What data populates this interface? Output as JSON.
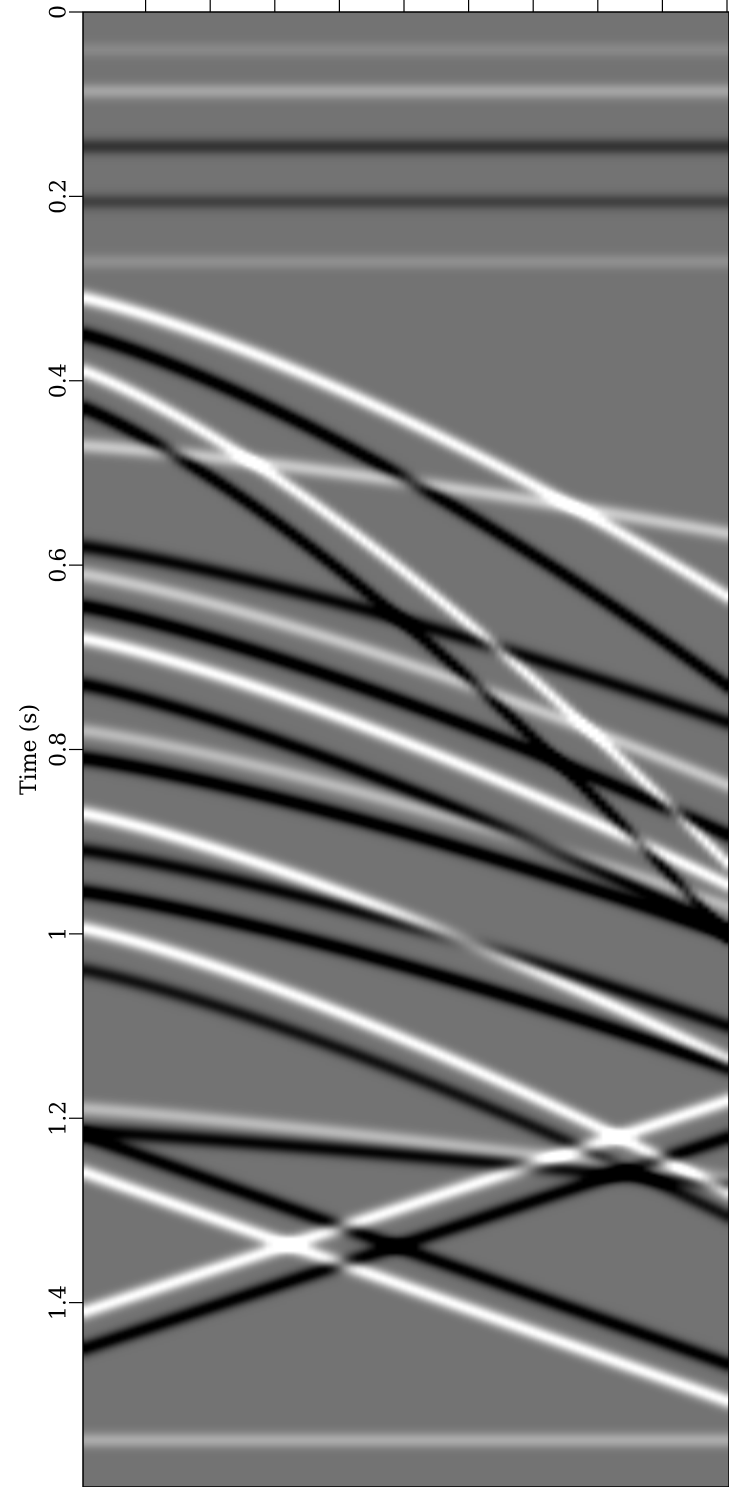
{
  "chart_data": {
    "type": "heatmap",
    "title": "",
    "ylabel": "Time (s)",
    "xlabel": "",
    "y_ticks": [
      "0",
      "0.2",
      "0.4",
      "0.6",
      "0.8",
      "1",
      "1.2",
      "1.4"
    ],
    "ylim": [
      0,
      1.6
    ],
    "y_inverted": true,
    "colormap": "grayscale",
    "x_tick_count": 10,
    "events": [
      {
        "t0": 0.04,
        "dt": 0.0,
        "bend": 0.0,
        "amp": 0.15
      },
      {
        "t0": 0.085,
        "dt": 0.0,
        "bend": 0.0,
        "amp": 0.35
      },
      {
        "t0": 0.145,
        "dt": 0.0,
        "bend": 0.0,
        "amp": -0.45
      },
      {
        "t0": 0.205,
        "dt": 0.0,
        "bend": 0.0,
        "amp": -0.35
      },
      {
        "t0": 0.27,
        "dt": 0.0,
        "bend": 0.0,
        "amp": 0.2
      },
      {
        "t0": 0.31,
        "dt": 0.17,
        "bend": 1.6,
        "amp": 1.0
      },
      {
        "t0": 0.35,
        "dt": 0.2,
        "bend": 1.6,
        "amp": -1.0
      },
      {
        "t0": 0.39,
        "dt": 0.28,
        "bend": 1.6,
        "amp": 1.0
      },
      {
        "t0": 0.43,
        "dt": 0.3,
        "bend": 1.6,
        "amp": -1.0
      },
      {
        "t0": 0.47,
        "dt": 0.05,
        "bend": 1.6,
        "amp": 0.6
      },
      {
        "t0": 0.58,
        "dt": 0.1,
        "bend": 1.5,
        "amp": -0.8
      },
      {
        "t0": 0.61,
        "dt": 0.12,
        "bend": 1.5,
        "amp": 0.6
      },
      {
        "t0": 0.645,
        "dt": 0.13,
        "bend": 1.5,
        "amp": -1.0
      },
      {
        "t0": 0.68,
        "dt": 0.14,
        "bend": 1.5,
        "amp": 1.0
      },
      {
        "t0": 0.73,
        "dt": 0.14,
        "bend": 1.5,
        "amp": -0.9
      },
      {
        "t0": 0.78,
        "dt": 0.1,
        "bend": 1.5,
        "amp": 0.5
      },
      {
        "t0": 0.81,
        "dt": 0.1,
        "bend": 1.5,
        "amp": -1.0
      },
      {
        "t0": 0.87,
        "dt": 0.14,
        "bend": 1.5,
        "amp": 1.0
      },
      {
        "t0": 0.91,
        "dt": 0.1,
        "bend": 1.5,
        "amp": -0.8
      },
      {
        "t0": 0.955,
        "dt": 0.1,
        "bend": 1.5,
        "amp": -1.0
      },
      {
        "t0": 0.995,
        "dt": 0.15,
        "bend": 1.5,
        "amp": 1.0
      },
      {
        "t0": 1.04,
        "dt": 0.14,
        "bend": 1.5,
        "amp": -0.7
      },
      {
        "t0": 1.19,
        "dt": 0.04,
        "bend": 1.3,
        "amp": 0.5
      },
      {
        "t0": 1.215,
        "dt": 0.03,
        "bend": 1.3,
        "amp": -0.8
      },
      {
        "t0": 1.41,
        "dt": -0.12,
        "bend": 1.0,
        "amp": 1.0
      },
      {
        "t0": 1.45,
        "dt": -0.12,
        "bend": 1.0,
        "amp": -0.9
      },
      {
        "t0": 1.26,
        "dt": 0.13,
        "bend": 1.0,
        "amp": 1.0
      },
      {
        "t0": 1.22,
        "dt": 0.13,
        "bend": 1.0,
        "amp": -0.9
      },
      {
        "t0": 1.55,
        "dt": 0.0,
        "bend": 1.0,
        "amp": 0.4
      }
    ]
  }
}
